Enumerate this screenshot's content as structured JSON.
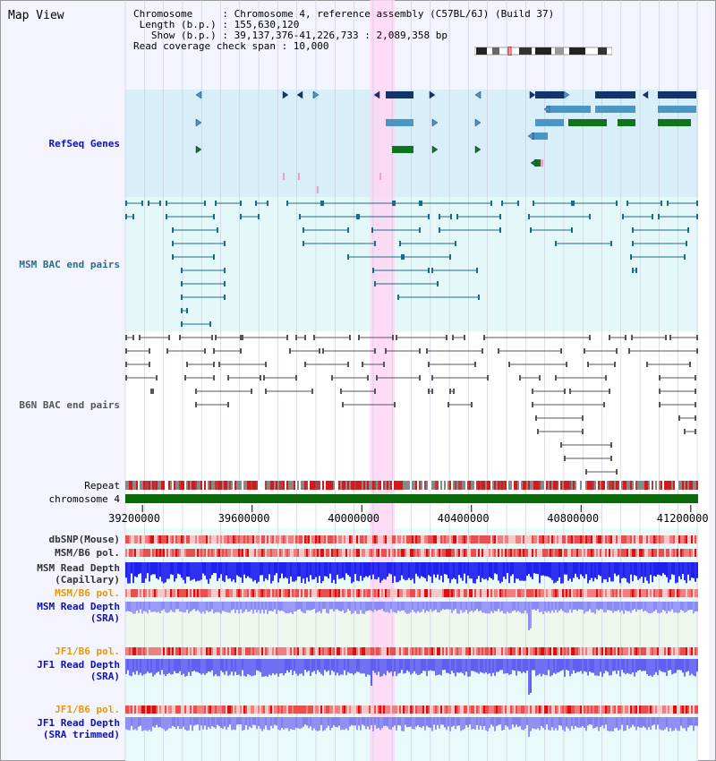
{
  "title": "Map View",
  "info": {
    "chromosome": "Chromosome     : Chromosome 4, reference assembly (C57BL/6J) (Build 37)",
    "length": " Length (b.p.) : 155,630,120",
    "show": "   Show (b.p.) : 39,137,376-41,226,733 : 2,089,358 bp",
    "span": "Read coverage check span : 10,000"
  },
  "tracks": {
    "refseq": "RefSeq Genes",
    "msm_bac": "MSM BAC end pairs",
    "b6n_bac": "B6N BAC end pairs",
    "repeat": "Repeat",
    "chromosome": "chromosome 4",
    "dbsnp": "dbSNP(Mouse)",
    "msm_b6_pol_1": "MSM/B6 pol.",
    "msm_depth_cap": "MSM Read Depth\n(Capillary)",
    "msm_b6_pol_2": "MSM/B6 pol.",
    "msm_depth_sra": "MSM Read Depth\n(SRA)",
    "jf1_b6_pol_1": "JF1/B6 pol.",
    "jf1_depth_sra": "JF1 Read Depth\n(SRA)",
    "jf1_b6_pol_2": "JF1/B6 pol.",
    "jf1_depth_trim": "JF1 Read Depth\n(SRA trimmed)"
  },
  "axis": {
    "range": [
      39137376,
      41226733
    ],
    "ticks": [
      {
        "pos": 39200000,
        "label": "39200000"
      },
      {
        "pos": 39600000,
        "label": "39600000"
      },
      {
        "pos": 40000000,
        "label": "40000000"
      },
      {
        "pos": 40400000,
        "label": "40400000"
      },
      {
        "pos": 40800000,
        "label": "40800000"
      },
      {
        "pos": 41200000,
        "label": "41200000"
      }
    ],
    "highlight": [
      40030000,
      40120000
    ]
  },
  "colors": {
    "refseq_bg": "#d8eef8",
    "bac_bg": "#e4f8fa",
    "msm_line": "#1a6c86",
    "b6n_line": "#555555",
    "gene_navy": "#12346a",
    "gene_light": "#4a96c4",
    "gene_green": "#10741a",
    "highlight": "#ffd6f4",
    "depth_dark": "#2020ee",
    "depth_light": "#7878f0",
    "pol_red": "#e84040",
    "label_blue": "#1010b0",
    "label_orange": "#e89800",
    "label_teal": "#2a6c88"
  }
}
